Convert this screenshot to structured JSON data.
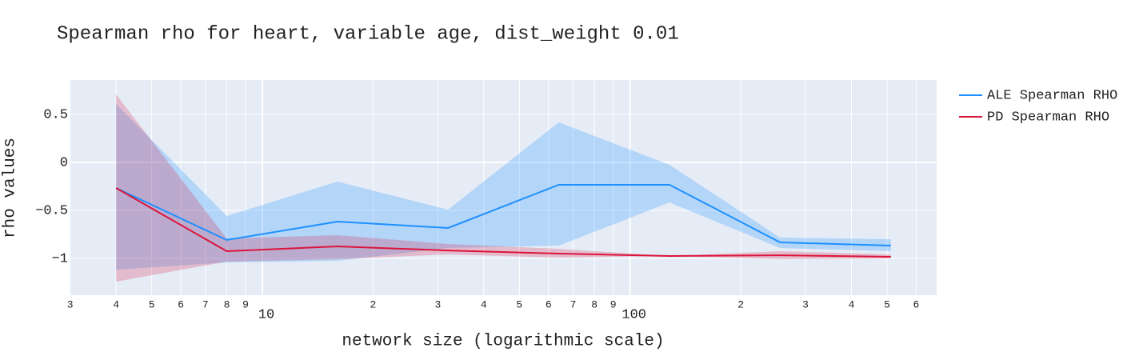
{
  "chart_data": {
    "type": "line",
    "title": "Spearman rho for heart, variable age, dist_weight 0.01",
    "x_label": "network size (logarithmic scale)",
    "y_label": "rho values",
    "x_log": true,
    "grid": true,
    "legend": "right",
    "x": [
      4,
      8,
      16,
      32,
      64,
      128,
      256,
      512
    ],
    "series": [
      {
        "name": "ALE Spearman RHO",
        "color": "#1e90ff",
        "band_color": "rgba(30,144,255,0.25)",
        "values": [
          -0.267,
          -0.808,
          -0.617,
          -0.683,
          -0.233,
          -0.233,
          -0.833,
          -0.867
        ],
        "upper": [
          0.608,
          -0.558,
          -0.2,
          -0.492,
          0.417,
          -0.025,
          -0.783,
          -0.8
        ],
        "lower": [
          -1.117,
          -1.042,
          -1.025,
          -0.892,
          -0.867,
          -0.417,
          -0.892,
          -0.925
        ]
      },
      {
        "name": "PD Spearman RHO",
        "color": "#dc143c",
        "band_color": "rgba(220,20,60,0.22)",
        "values": [
          -0.267,
          -0.925,
          -0.875,
          -0.917,
          -0.95,
          -0.975,
          -0.967,
          -0.983
        ],
        "upper": [
          0.708,
          -0.792,
          -0.758,
          -0.85,
          -0.9,
          -0.975,
          -0.925,
          -0.958
        ],
        "lower": [
          -1.242,
          -1.033,
          -1.008,
          -0.958,
          -0.992,
          -0.975,
          -1.008,
          -1.0
        ]
      }
    ],
    "xlim": [
      2.99,
      682
    ],
    "ylim": [
      -1.383,
      0.858
    ],
    "xticks": [
      3,
      4,
      5,
      6,
      7,
      8,
      9,
      10,
      {
        "value": 20,
        "label": "2"
      },
      {
        "value": 30,
        "label": "3"
      },
      {
        "value": 40,
        "label": "4"
      },
      {
        "value": 50,
        "label": "5"
      },
      {
        "value": 60,
        "label": "6"
      },
      {
        "value": 70,
        "label": "7"
      },
      {
        "value": 80,
        "label": "8"
      },
      {
        "value": 90,
        "label": "9"
      },
      100,
      {
        "value": 200,
        "label": "2"
      },
      {
        "value": 300,
        "label": "3"
      },
      {
        "value": 400,
        "label": "4"
      },
      {
        "value": 500,
        "label": "5"
      },
      {
        "value": 600,
        "label": "6"
      }
    ],
    "yticks": [
      0.5,
      0,
      {
        "value": -0.5,
        "label": "−0.5"
      },
      {
        "value": -1,
        "label": "−1"
      }
    ]
  }
}
